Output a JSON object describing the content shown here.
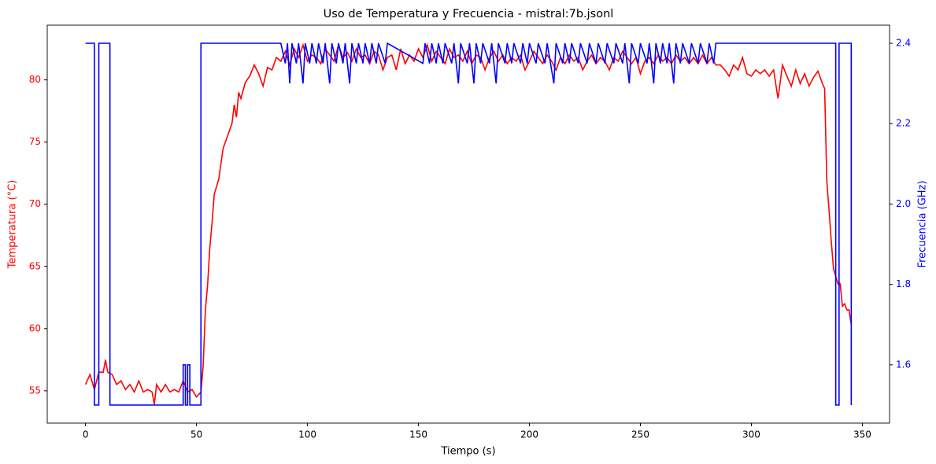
{
  "chart_data": {
    "type": "line",
    "title": "Uso de Temperatura y Frecuencia - mistral:7b.jsonl",
    "xlabel": "Tiempo (s)",
    "ylabel": "Temperatura (°C)",
    "y2label": "Frecuencia (GHz)",
    "xlim": [
      -17.25,
      362.25
    ],
    "xticks": [
      0,
      50,
      100,
      150,
      200,
      250,
      300,
      350
    ],
    "ylim": [
      52.4,
      84.4
    ],
    "yticks": [
      55,
      60,
      65,
      70,
      75,
      80
    ],
    "y2lim": [
      1.455,
      2.445
    ],
    "y2ticks": [
      1.6,
      1.8,
      {
        "value": 2,
        "label": "2.0"
      },
      2.2,
      2.4
    ],
    "series": [
      {
        "color": "#ff0000",
        "x": [
          0,
          2,
          4,
          6,
          8,
          9,
          10,
          12,
          14,
          16,
          18,
          20,
          22,
          24,
          26,
          28,
          30,
          31,
          32,
          34,
          36,
          38,
          40,
          42,
          44,
          46,
          48,
          50,
          52,
          53,
          54,
          55,
          56,
          57,
          58,
          60,
          62,
          64,
          66,
          67,
          68,
          69,
          70,
          72,
          74,
          76,
          78,
          80,
          82,
          84,
          86,
          88,
          90,
          92,
          94,
          96,
          98,
          100,
          102,
          104,
          106,
          108,
          110,
          112,
          114,
          116,
          118,
          120,
          122,
          124,
          126,
          128,
          130,
          132,
          134,
          136,
          138,
          140,
          142,
          144,
          146,
          148,
          150,
          152,
          154,
          156,
          158,
          160,
          162,
          164,
          166,
          168,
          170,
          172,
          174,
          176,
          178,
          180,
          182,
          184,
          186,
          188,
          190,
          192,
          194,
          196,
          198,
          200,
          202,
          204,
          206,
          208,
          210,
          212,
          214,
          216,
          218,
          220,
          222,
          224,
          226,
          228,
          230,
          232,
          234,
          236,
          238,
          240,
          242,
          244,
          246,
          248,
          250,
          252,
          254,
          256,
          258,
          260,
          262,
          264,
          266,
          268,
          270,
          272,
          274,
          276,
          278,
          280,
          282,
          284,
          286,
          288,
          290,
          292,
          294,
          296,
          298,
          300,
          302,
          304,
          306,
          308,
          310,
          312,
          314,
          316,
          318,
          320,
          322,
          324,
          326,
          328,
          330,
          332,
          333,
          334,
          335,
          336,
          337,
          338,
          339,
          340,
          341,
          342,
          343,
          344,
          345
        ],
        "values": [
          55.5,
          56.3,
          55.1,
          56.5,
          56.5,
          57.5,
          56.5,
          56.3,
          55.5,
          55.8,
          55.1,
          55.5,
          54.9,
          55.8,
          54.9,
          55.1,
          54.9,
          53.9,
          55.5,
          54.9,
          55.5,
          54.9,
          55.1,
          54.9,
          55.8,
          54.9,
          55.1,
          54.5,
          54.9,
          57,
          61.5,
          63.5,
          66.5,
          68.5,
          70.8,
          72,
          74.5,
          75.5,
          76.5,
          78,
          77,
          79,
          78.5,
          79.8,
          80.3,
          81.2,
          80.5,
          79.5,
          81,
          80.8,
          81.8,
          81.5,
          82.3,
          81.2,
          82.5,
          81.8,
          82.8,
          81.5,
          82,
          81.8,
          81.3,
          82.5,
          82,
          81.5,
          82.8,
          81.8,
          82.2,
          81.5,
          82.5,
          81.8,
          82,
          81.3,
          82.3,
          82,
          80.8,
          81.8,
          82,
          80.8,
          82.5,
          81.3,
          82,
          81.5,
          82.5,
          81.8,
          82.8,
          81.5,
          82.3,
          81.8,
          81.3,
          82.5,
          81.8,
          82,
          81.5,
          82.3,
          81.3,
          82,
          81.8,
          80.8,
          81.8,
          82.3,
          81.5,
          82,
          81.3,
          81.8,
          81.5,
          82,
          80.8,
          81.5,
          82.3,
          81.8,
          81.3,
          82,
          81.5,
          80.8,
          81.8,
          81.3,
          82,
          81.5,
          81.8,
          80.8,
          81.5,
          82,
          81.3,
          81.8,
          81.5,
          80.8,
          81.8,
          81.5,
          82.3,
          81.8,
          81.3,
          81.8,
          80.5,
          81.5,
          81.8,
          81.3,
          82,
          81.5,
          81.8,
          81.3,
          82,
          81.5,
          81.8,
          81.3,
          81.8,
          81.3,
          82,
          81.3,
          81.8,
          81.2,
          81.2,
          80.8,
          80.3,
          81.2,
          80.8,
          81.8,
          80.5,
          80.3,
          80.8,
          80.5,
          80.8,
          80.3,
          80.8,
          78.5,
          81.2,
          80.3,
          79.5,
          80.8,
          79.7,
          80.5,
          79.5,
          80.2,
          80.7,
          79.7,
          79.3,
          71.8,
          69.5,
          67,
          64.8,
          64.2,
          63.6,
          63.6,
          61.8,
          62,
          61.5,
          61.5,
          60.3
        ]
      },
      {
        "color": "#0000ff",
        "axis": "y2",
        "x": [
          0,
          4,
          4,
          6,
          6,
          11,
          11,
          44,
          44,
          45,
          45,
          46,
          46,
          47,
          47,
          52,
          52,
          88,
          90,
          91,
          92,
          93,
          95,
          96,
          98,
          99,
          101,
          102,
          104,
          105,
          107,
          108,
          110,
          111,
          113,
          114,
          116,
          117,
          119,
          120,
          122,
          123,
          125,
          126,
          128,
          129,
          131,
          132,
          135,
          136,
          152,
          153,
          155,
          156,
          158,
          159,
          161,
          162,
          165,
          166,
          168,
          169,
          172,
          173,
          175,
          176,
          178,
          179,
          182,
          183,
          185,
          186,
          189,
          190,
          192,
          193,
          196,
          197,
          199,
          200,
          203,
          204,
          207,
          208,
          211,
          212,
          215,
          216,
          218,
          219,
          222,
          223,
          226,
          227,
          230,
          231,
          234,
          235,
          238,
          239,
          242,
          243,
          245,
          246,
          249,
          250,
          253,
          254,
          256,
          257,
          259,
          260,
          262,
          263,
          265,
          266,
          268,
          269,
          272,
          273,
          276,
          277,
          280,
          281,
          283,
          284,
          338,
          338,
          339.5,
          339.5,
          345,
          345
        ],
        "values": [
          2.4,
          2.4,
          1.5,
          1.5,
          2.4,
          2.4,
          1.5,
          1.5,
          1.6,
          1.6,
          1.5,
          1.5,
          1.6,
          1.6,
          1.5,
          1.5,
          2.4,
          2.4,
          2.35,
          2.4,
          2.3,
          2.4,
          2.35,
          2.4,
          2.3,
          2.4,
          2.35,
          2.4,
          2.35,
          2.4,
          2.35,
          2.4,
          2.3,
          2.4,
          2.35,
          2.4,
          2.35,
          2.4,
          2.3,
          2.4,
          2.35,
          2.4,
          2.35,
          2.4,
          2.35,
          2.4,
          2.35,
          2.4,
          2.35,
          2.4,
          2.35,
          2.4,
          2.35,
          2.4,
          2.35,
          2.4,
          2.35,
          2.4,
          2.35,
          2.4,
          2.3,
          2.4,
          2.35,
          2.4,
          2.3,
          2.4,
          2.35,
          2.4,
          2.35,
          2.4,
          2.3,
          2.4,
          2.35,
          2.4,
          2.35,
          2.4,
          2.35,
          2.4,
          2.35,
          2.4,
          2.35,
          2.4,
          2.35,
          2.4,
          2.3,
          2.4,
          2.35,
          2.4,
          2.35,
          2.4,
          2.35,
          2.4,
          2.35,
          2.4,
          2.35,
          2.4,
          2.35,
          2.4,
          2.35,
          2.4,
          2.35,
          2.4,
          2.3,
          2.4,
          2.35,
          2.4,
          2.35,
          2.4,
          2.3,
          2.4,
          2.35,
          2.4,
          2.35,
          2.4,
          2.3,
          2.4,
          2.35,
          2.4,
          2.35,
          2.4,
          2.35,
          2.4,
          2.35,
          2.4,
          2.35,
          2.4,
          2.4,
          1.5,
          1.5,
          2.4,
          2.4,
          1.5
        ]
      }
    ]
  }
}
